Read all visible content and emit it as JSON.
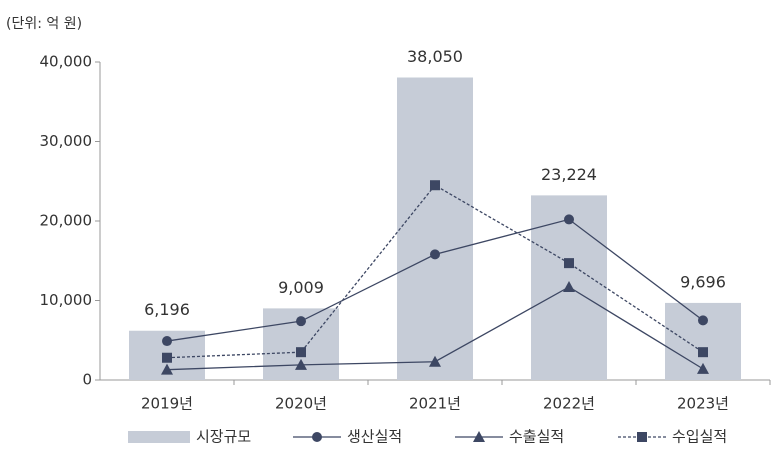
{
  "chart_data": {
    "type": "combo",
    "unit_label": "(단위: 억 원)",
    "categories": [
      "2019년",
      "2020년",
      "2021년",
      "2022년",
      "2023년"
    ],
    "series": [
      {
        "name": "시장규모",
        "type": "bar",
        "color": "#c6ccd7",
        "values": [
          6196,
          9009,
          38050,
          23224,
          9696
        ],
        "value_labels": [
          "6,196",
          "9,009",
          "38,050",
          "23,224",
          "9,696"
        ]
      },
      {
        "name": "생산실적",
        "type": "line",
        "marker": "circle",
        "line_style": "solid",
        "color": "#3d4763",
        "values": [
          4900,
          7400,
          15800,
          20200,
          7500
        ]
      },
      {
        "name": "수출실적",
        "type": "line",
        "marker": "triangle",
        "line_style": "solid",
        "color": "#3d4763",
        "values": [
          1300,
          1900,
          2300,
          11700,
          1400
        ]
      },
      {
        "name": "수입실적",
        "type": "line",
        "marker": "square",
        "line_style": "dashed",
        "color": "#3d4763",
        "values": [
          2800,
          3500,
          24500,
          14700,
          3500
        ]
      }
    ],
    "ylim": [
      0,
      40000
    ],
    "yticks": [
      0,
      {
        "value": 10000,
        "label": "10,000"
      },
      {
        "value": 20000,
        "label": "20,000"
      },
      {
        "value": 30000,
        "label": "30,000"
      },
      {
        "value": 40000,
        "label": "40,000"
      }
    ],
    "grid": false
  }
}
